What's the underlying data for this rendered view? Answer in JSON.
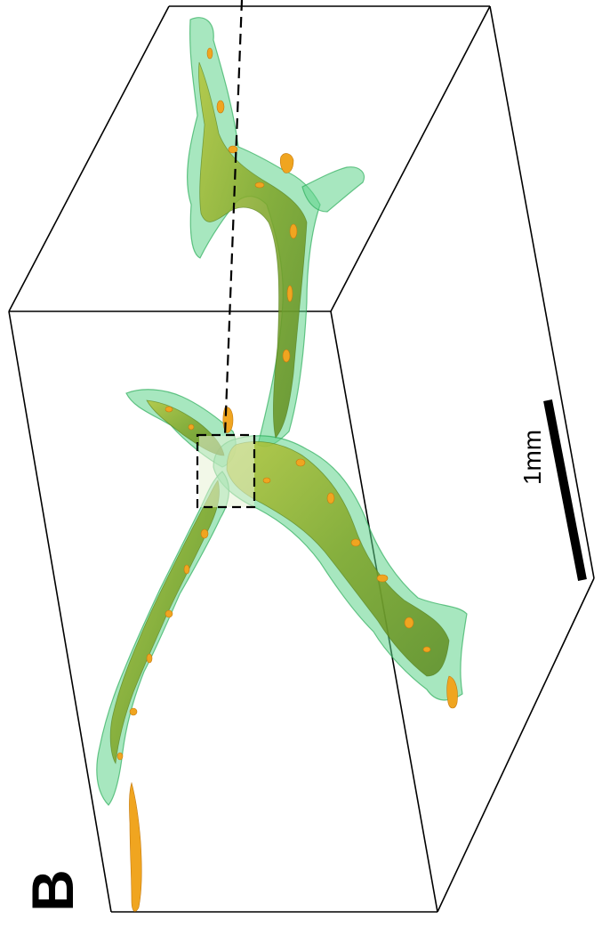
{
  "figure": {
    "panel_label": "B",
    "scale_bar_label": "1mm",
    "colors": {
      "outer_vessel": "#58d283",
      "outer_vessel_edge": "#2fae5c",
      "inner_vessel": "#7fae2a",
      "inner_highlight": "#f0a520",
      "box_lines": "#000000"
    },
    "icons": [
      "bounding-box-wireframe",
      "vessel-network-render",
      "dashed-cross-section-line",
      "dashed-inset-box",
      "scale-bar"
    ]
  }
}
